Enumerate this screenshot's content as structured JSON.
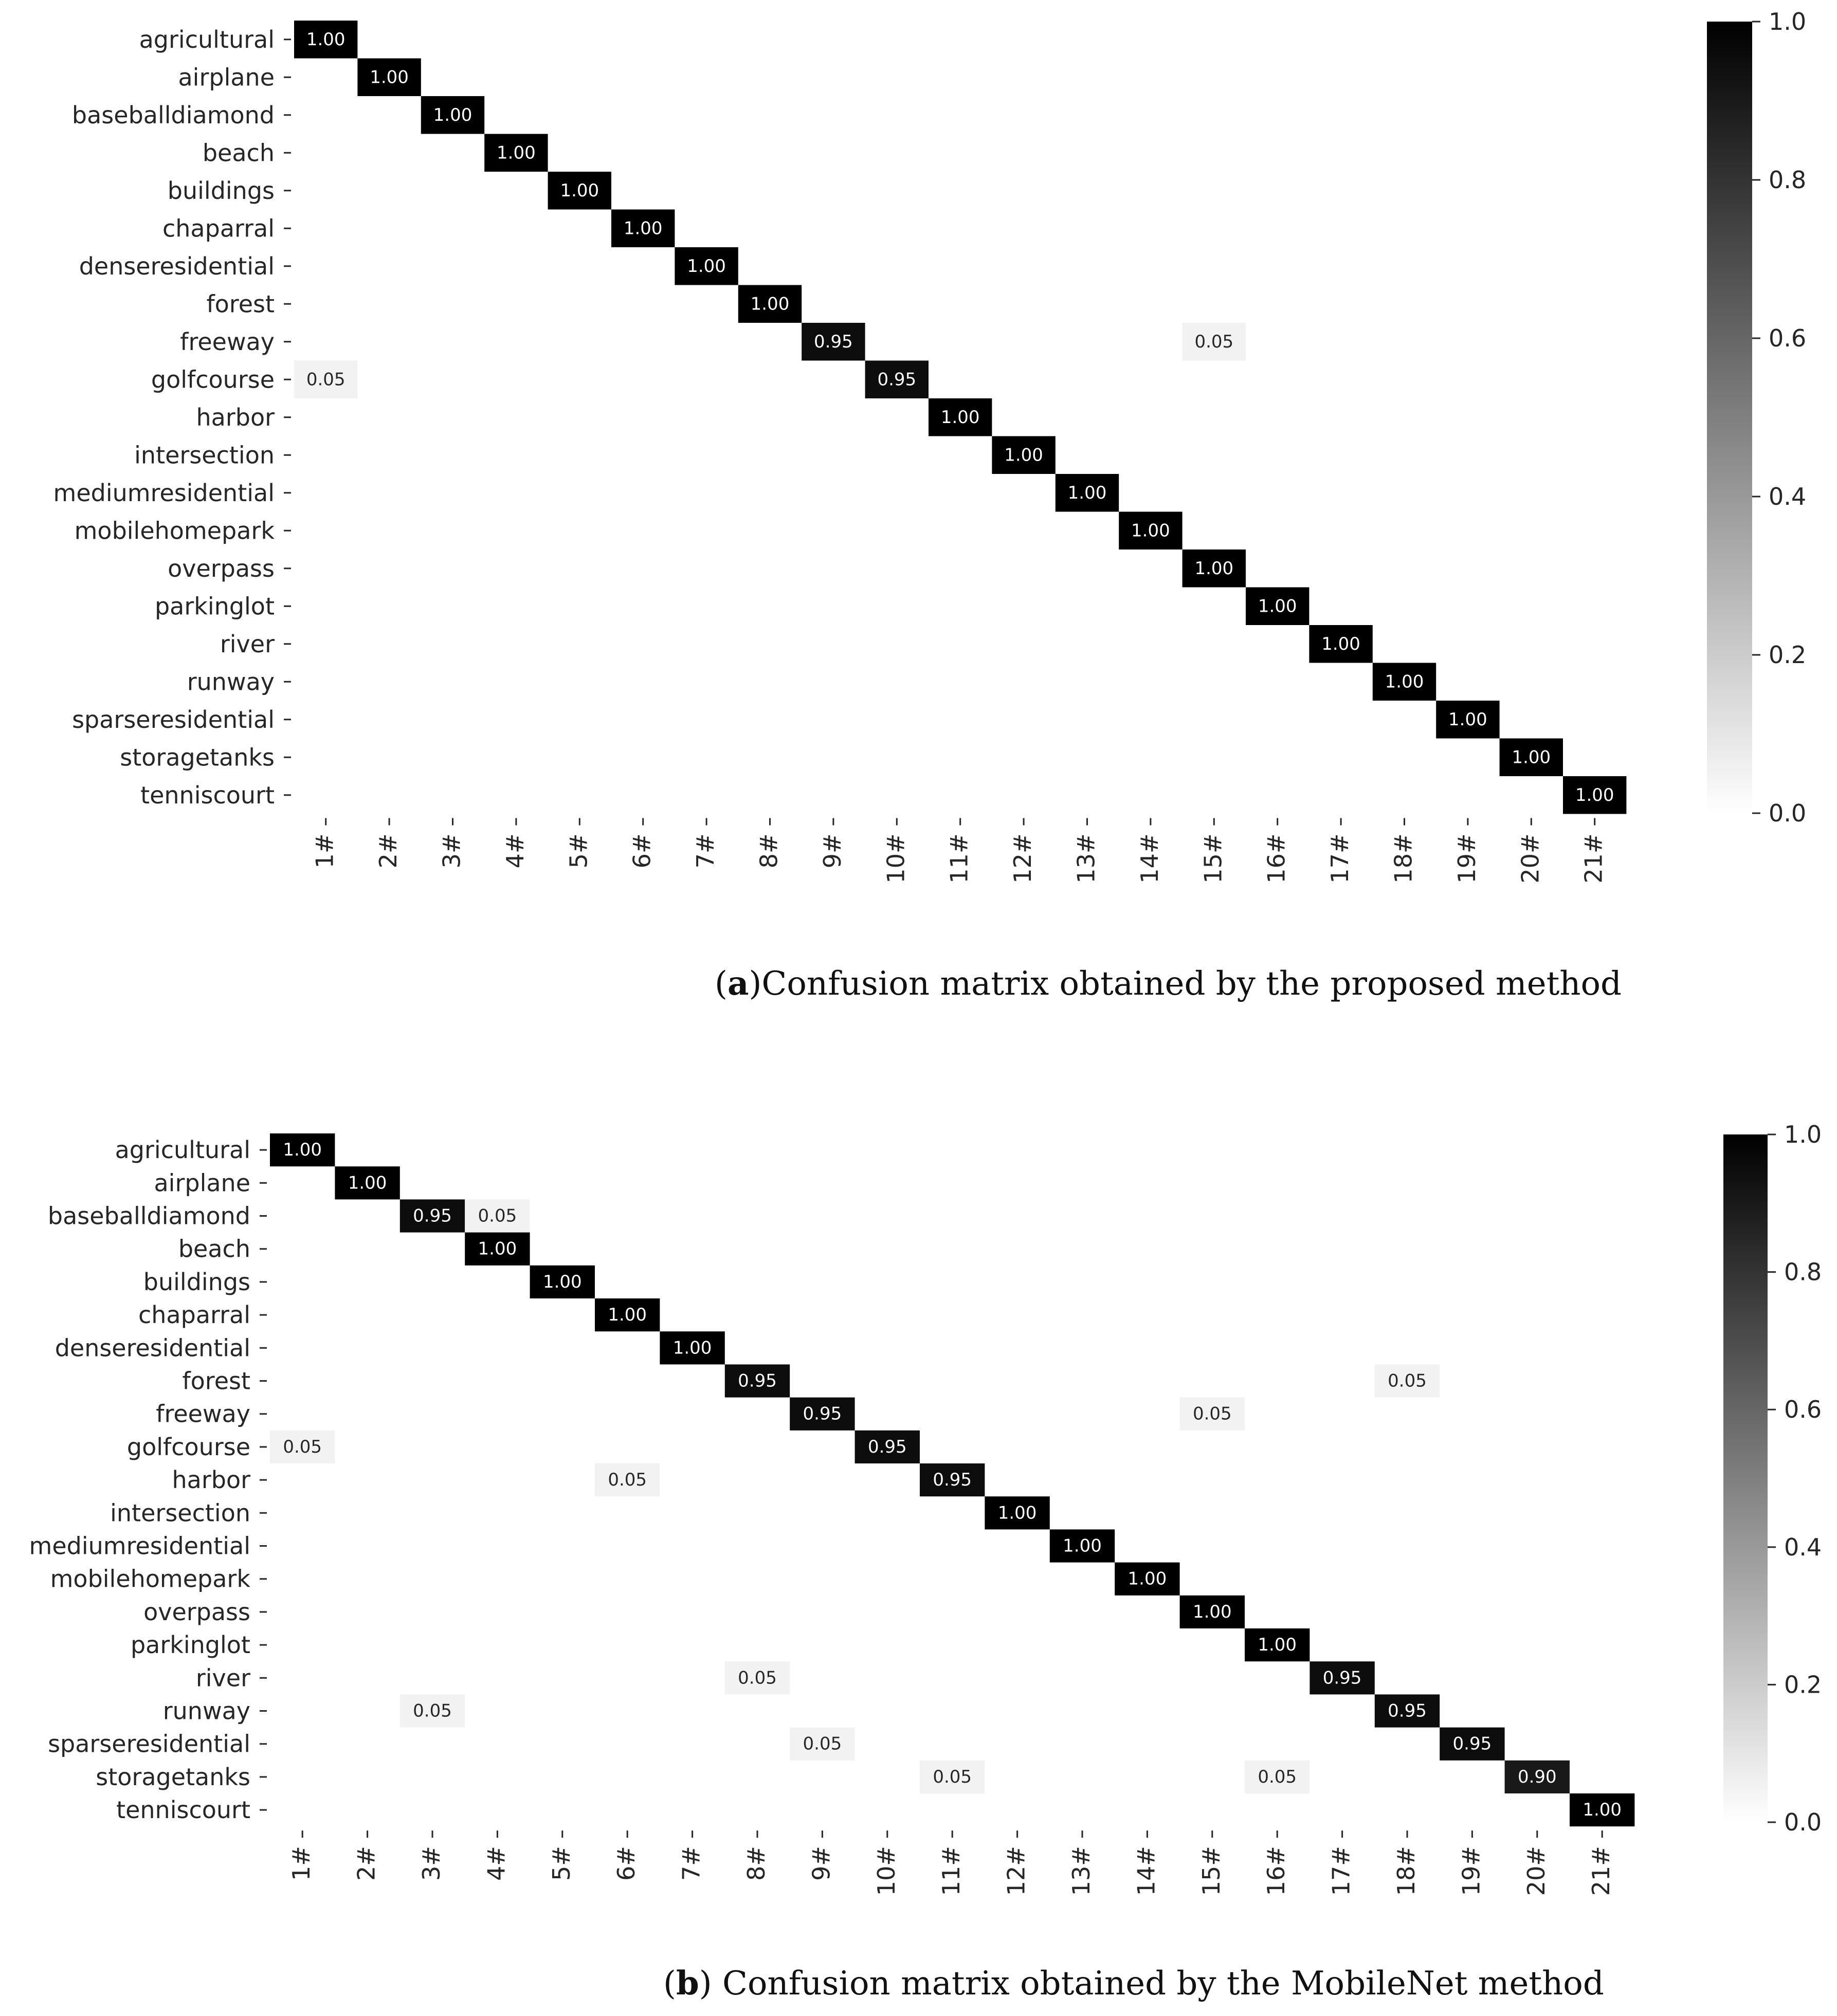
{
  "chart_data": [
    {
      "type": "heatmap",
      "panel": "a",
      "caption_bold": "a",
      "caption_text": "Confusion matrix obtained by the proposed method",
      "row_labels": [
        "agricultural",
        "airplane",
        "baseballdiamond",
        "beach",
        "buildings",
        "chaparral",
        "denseresidential",
        "forest",
        "freeway",
        "golfcourse",
        "harbor",
        "intersection",
        "mediumresidential",
        "mobilehomepark",
        "overpass",
        "parkinglot",
        "river",
        "runway",
        "sparseresidential",
        "storagetanks",
        "tenniscourt"
      ],
      "col_labels": [
        "1#",
        "2#",
        "3#",
        "4#",
        "5#",
        "6#",
        "7#",
        "8#",
        "9#",
        "10#",
        "11#",
        "12#",
        "13#",
        "14#",
        "15#",
        "16#",
        "17#",
        "18#",
        "19#",
        "20#",
        "21#"
      ],
      "cells": [
        [
          0,
          0,
          1.0
        ],
        [
          1,
          1,
          1.0
        ],
        [
          2,
          2,
          1.0
        ],
        [
          3,
          3,
          1.0
        ],
        [
          4,
          4,
          1.0
        ],
        [
          5,
          5,
          1.0
        ],
        [
          6,
          6,
          1.0
        ],
        [
          7,
          7,
          1.0
        ],
        [
          8,
          8,
          0.95
        ],
        [
          8,
          14,
          0.05
        ],
        [
          9,
          0,
          0.05
        ],
        [
          9,
          9,
          0.95
        ],
        [
          10,
          10,
          1.0
        ],
        [
          11,
          11,
          1.0
        ],
        [
          12,
          12,
          1.0
        ],
        [
          13,
          13,
          1.0
        ],
        [
          14,
          14,
          1.0
        ],
        [
          15,
          15,
          1.0
        ],
        [
          16,
          16,
          1.0
        ],
        [
          17,
          17,
          1.0
        ],
        [
          18,
          18,
          1.0
        ],
        [
          19,
          19,
          1.0
        ],
        [
          20,
          20,
          1.0
        ]
      ],
      "colorbar": {
        "range": [
          0.0,
          1.0
        ],
        "ticks": [
          "0.0",
          "0.2",
          "0.4",
          "0.6",
          "0.8",
          "1.0"
        ],
        "colormap": "gray_r"
      }
    },
    {
      "type": "heatmap",
      "panel": "b",
      "caption_bold": "b",
      "caption_text": " Confusion matrix obtained by the MobileNet method",
      "row_labels": [
        "agricultural",
        "airplane",
        "baseballdiamond",
        "beach",
        "buildings",
        "chaparral",
        "denseresidential",
        "forest",
        "freeway",
        "golfcourse",
        "harbor",
        "intersection",
        "mediumresidential",
        "mobilehomepark",
        "overpass",
        "parkinglot",
        "river",
        "runway",
        "sparseresidential",
        "storagetanks",
        "tenniscourt"
      ],
      "col_labels": [
        "1#",
        "2#",
        "3#",
        "4#",
        "5#",
        "6#",
        "7#",
        "8#",
        "9#",
        "10#",
        "11#",
        "12#",
        "13#",
        "14#",
        "15#",
        "16#",
        "17#",
        "18#",
        "19#",
        "20#",
        "21#"
      ],
      "cells": [
        [
          0,
          0,
          1.0
        ],
        [
          1,
          1,
          1.0
        ],
        [
          2,
          2,
          0.95
        ],
        [
          2,
          3,
          0.05
        ],
        [
          3,
          3,
          1.0
        ],
        [
          4,
          4,
          1.0
        ],
        [
          5,
          5,
          1.0
        ],
        [
          6,
          6,
          1.0
        ],
        [
          7,
          7,
          0.95
        ],
        [
          7,
          17,
          0.05
        ],
        [
          8,
          8,
          0.95
        ],
        [
          8,
          14,
          0.05
        ],
        [
          9,
          0,
          0.05
        ],
        [
          9,
          9,
          0.95
        ],
        [
          10,
          5,
          0.05
        ],
        [
          10,
          10,
          0.95
        ],
        [
          11,
          11,
          1.0
        ],
        [
          12,
          12,
          1.0
        ],
        [
          13,
          13,
          1.0
        ],
        [
          14,
          14,
          1.0
        ],
        [
          15,
          15,
          1.0
        ],
        [
          16,
          7,
          0.05
        ],
        [
          16,
          16,
          0.95
        ],
        [
          17,
          2,
          0.05
        ],
        [
          17,
          17,
          0.95
        ],
        [
          18,
          8,
          0.05
        ],
        [
          18,
          18,
          0.95
        ],
        [
          19,
          10,
          0.05
        ],
        [
          19,
          15,
          0.05
        ],
        [
          19,
          19,
          0.9
        ],
        [
          20,
          20,
          1.0
        ]
      ],
      "colorbar": {
        "range": [
          0.0,
          1.0
        ],
        "ticks": [
          "0.0",
          "0.2",
          "0.4",
          "0.6",
          "0.8",
          "1.0"
        ],
        "colormap": "gray_r"
      }
    }
  ]
}
